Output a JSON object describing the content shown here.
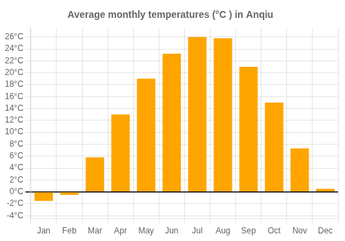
{
  "chart_data": {
    "type": "bar",
    "title": "Average monthly temperatures (°C ) in Anqiu",
    "categories": [
      "Jan",
      "Feb",
      "Mar",
      "Apr",
      "May",
      "Jun",
      "Jul",
      "Aug",
      "Sep",
      "Oct",
      "Nov",
      "Dec"
    ],
    "values": [
      -1.5,
      -0.5,
      5.8,
      13.0,
      19.0,
      23.2,
      26.0,
      25.8,
      21.0,
      15.0,
      7.3,
      0.5
    ],
    "color": "#FFA500",
    "ylim": [
      -4.5,
      27.5
    ],
    "yticks": [
      {
        "value": -4,
        "label": "-4°C"
      },
      {
        "value": -2,
        "label": "-2°C"
      },
      {
        "value": 0,
        "label": "0°C"
      },
      {
        "value": 2,
        "label": "2°C"
      },
      {
        "value": 4,
        "label": "4°C"
      },
      {
        "value": 6,
        "label": "6°C"
      },
      {
        "value": 8,
        "label": "8°C"
      },
      {
        "value": 10,
        "label": "10°C"
      },
      {
        "value": 12,
        "label": "12°C"
      },
      {
        "value": 14,
        "label": "14°C"
      },
      {
        "value": 16,
        "label": "16°C"
      },
      {
        "value": 18,
        "label": "18°C"
      },
      {
        "value": 20,
        "label": "20°C"
      },
      {
        "value": 22,
        "label": "22°C"
      },
      {
        "value": 24,
        "label": "24°C"
      },
      {
        "value": 26,
        "label": "26°C"
      }
    ],
    "grid": true
  }
}
